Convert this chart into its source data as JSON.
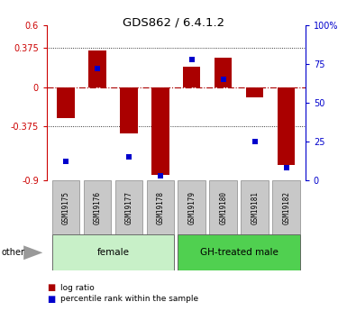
{
  "title": "GDS862 / 6.4.1.2",
  "samples": [
    "GSM19175",
    "GSM19176",
    "GSM19177",
    "GSM19178",
    "GSM19179",
    "GSM19180",
    "GSM19181",
    "GSM19182"
  ],
  "log_ratio": [
    -0.3,
    0.35,
    -0.45,
    -0.85,
    0.2,
    0.28,
    -0.1,
    -0.75
  ],
  "percentile_rank": [
    12,
    72,
    15,
    3,
    78,
    65,
    25,
    8
  ],
  "bar_color": "#aa0000",
  "dot_color": "#0000cc",
  "ylim_left": [
    -0.9,
    0.6
  ],
  "ylim_right": [
    0,
    100
  ],
  "yticks_left": [
    -0.9,
    -0.375,
    0,
    0.375,
    0.6
  ],
  "ytick_labels_left": [
    "-0.9",
    "-0.375",
    "0",
    "0.375",
    "0.6"
  ],
  "yticks_right": [
    0,
    25,
    50,
    75,
    100
  ],
  "ytick_labels_right": [
    "0",
    "25",
    "50",
    "75",
    "100%"
  ],
  "hlines_dotted": [
    -0.375,
    0.375
  ],
  "hline_dashdot": 0,
  "groups": [
    {
      "label": "female",
      "start": 0,
      "end": 3,
      "color": "#c8f0c8"
    },
    {
      "label": "GH-treated male",
      "start": 4,
      "end": 7,
      "color": "#50d050"
    }
  ],
  "other_label": "other",
  "legend_items": [
    {
      "label": "log ratio",
      "color": "#aa0000"
    },
    {
      "label": "percentile rank within the sample",
      "color": "#0000cc"
    }
  ],
  "bar_width": 0.55,
  "background_plot": "#ffffff",
  "tick_color_left": "#cc0000",
  "tick_color_right": "#0000cc",
  "sample_box_color": "#c8c8c8",
  "sample_box_edge": "#888888"
}
